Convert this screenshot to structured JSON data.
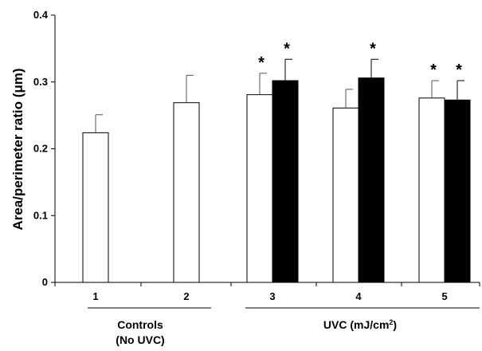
{
  "chart_data": {
    "type": "bar",
    "ylabel": "Area/perimeter ratio (μm)",
    "ylim": [
      0,
      0.4
    ],
    "yticks": [
      "0",
      "0.1",
      "0.2",
      "0.3",
      "0.4"
    ],
    "ytick_values": [
      0,
      0.1,
      0.2,
      0.3,
      0.4
    ],
    "categories": [
      "1",
      "2",
      "3",
      "4",
      "5"
    ],
    "series": [
      {
        "color": "#ffffff",
        "values": [
          0.224,
          0.269,
          0.281,
          0.261,
          0.276
        ],
        "errors": [
          0.027,
          0.041,
          0.032,
          0.028,
          0.026
        ],
        "significant": [
          false,
          false,
          true,
          false,
          true
        ]
      },
      {
        "color": "#000000",
        "values": [
          null,
          null,
          0.302,
          0.306,
          0.273
        ],
        "errors": [
          null,
          null,
          0.032,
          0.028,
          0.029
        ],
        "significant": [
          false,
          false,
          true,
          true,
          true
        ]
      }
    ],
    "significance_marker": "*",
    "groups": [
      {
        "line1": "Controls",
        "line2": "(No UVC)",
        "categories": [
          "1",
          "2"
        ]
      },
      {
        "line1": "UVC (mJ/cm",
        "sup": "2",
        "line1_end": ")",
        "categories": [
          "3",
          "4",
          "5"
        ]
      }
    ],
    "grid": false
  }
}
